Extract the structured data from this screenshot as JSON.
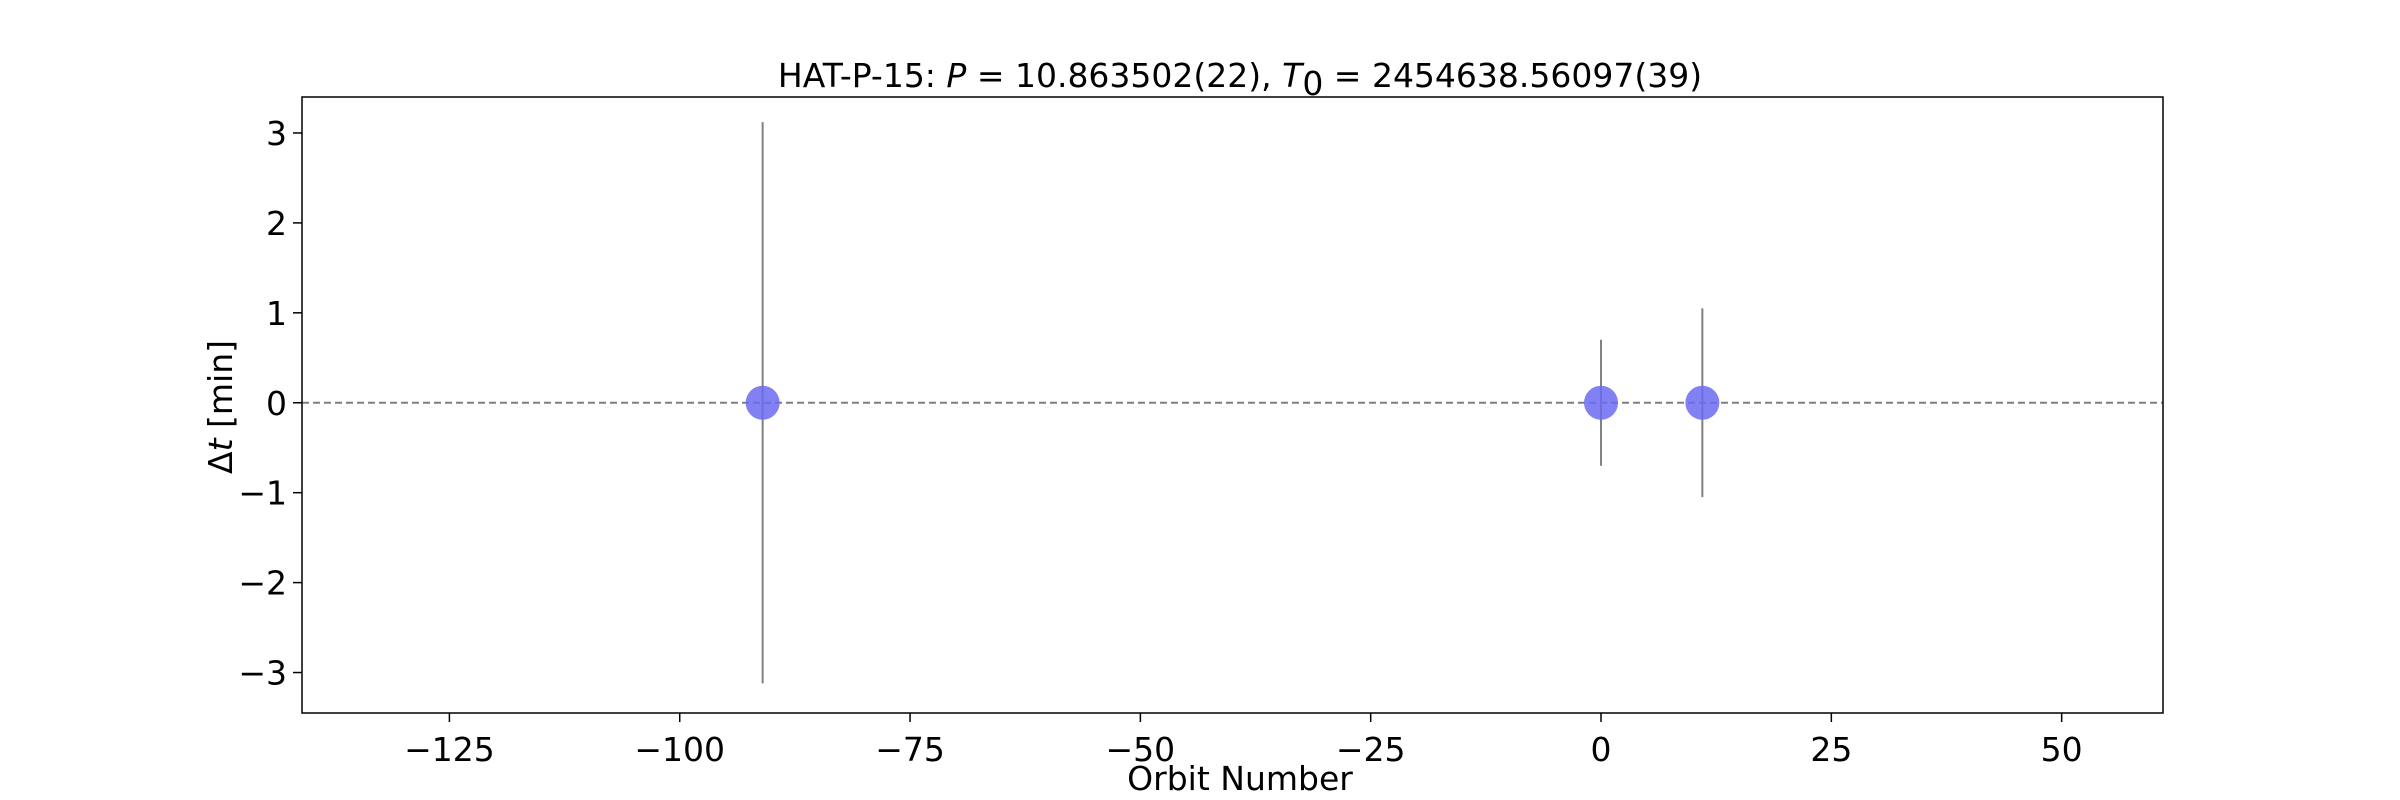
{
  "chart_data": {
    "type": "scatter",
    "title": {
      "planet": "HAT-P-15: ",
      "p_symbol": "P",
      "p_eq": " = 10.863502(22), ",
      "t_symbol": "T",
      "t_sub": "0",
      "t_eq": " = 2454638.56097(39)"
    },
    "xlabel": "Orbit Number",
    "ylabel": {
      "delta": "Δ",
      "var": "t",
      "unit": " [min]"
    },
    "xlim": [
      -141,
      61
    ],
    "ylim": [
      -3.45,
      3.4
    ],
    "xticks": [
      -125,
      -100,
      -75,
      -50,
      -25,
      0,
      25,
      50
    ],
    "xtick_labels": [
      "−125",
      "−100",
      "−75",
      "−50",
      "−25",
      "0",
      "25",
      "50"
    ],
    "yticks": [
      -3,
      -2,
      -1,
      0,
      1,
      2,
      3
    ],
    "ytick_labels": [
      "−3",
      "−2",
      "−1",
      "0",
      "1",
      "2",
      "3"
    ],
    "reference_line": {
      "y": 0,
      "style": "dashed",
      "color": "#7f7f7f"
    },
    "grid": false,
    "legend": "none",
    "marker_color": "#6b6bf2",
    "errorbar_color": "#808080",
    "points": [
      {
        "x": -91,
        "y": 0,
        "yerr": 3.12
      },
      {
        "x": 0,
        "y": 0,
        "yerr": 0.7
      },
      {
        "x": 11,
        "y": 0,
        "yerr": 1.05
      }
    ]
  }
}
